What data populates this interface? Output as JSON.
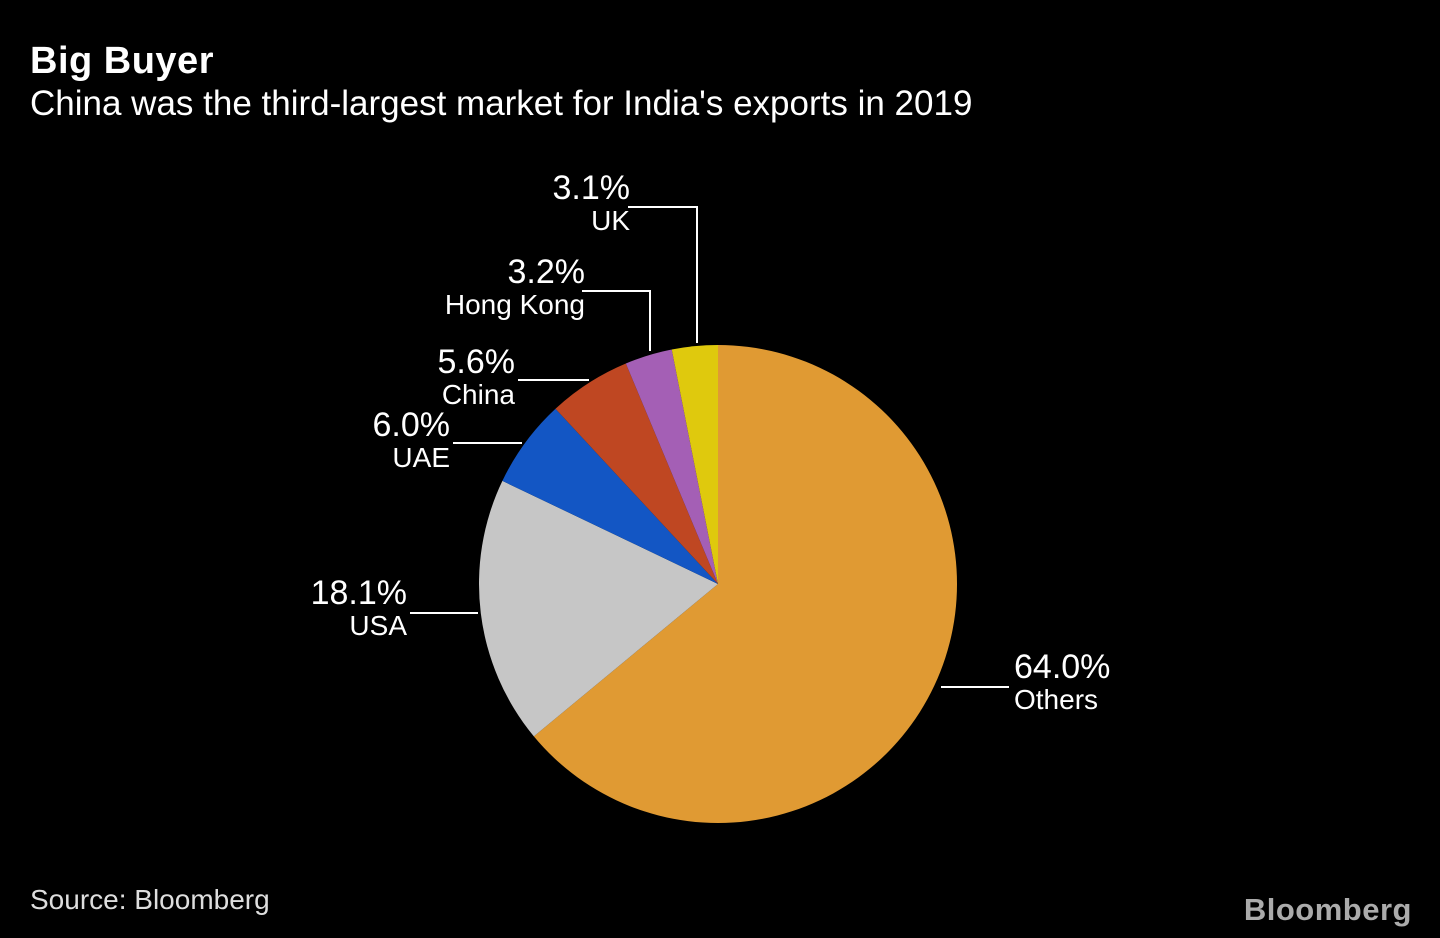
{
  "header": {
    "title": "Big Buyer",
    "subtitle": "China was the third-largest market for India's exports in 2019"
  },
  "chart_data": {
    "type": "pie",
    "title": "Big Buyer",
    "subtitle": "China was the third-largest market for India's exports in 2019",
    "unit": "%",
    "direction": "clockwise",
    "start_angle_deg": 0,
    "legend": "none",
    "label_style": "callout",
    "slices": [
      {
        "name": "Others",
        "value": 64.0,
        "label": "64.0%",
        "color": "#E09A33"
      },
      {
        "name": "USA",
        "value": 18.1,
        "label": "18.1%",
        "color": "#C6C6C6"
      },
      {
        "name": "UAE",
        "value": 6.0,
        "label": "6.0%",
        "color": "#1356C4"
      },
      {
        "name": "China",
        "value": 5.6,
        "label": "5.6%",
        "color": "#BF4722"
      },
      {
        "name": "Hong Kong",
        "value": 3.2,
        "label": "3.2%",
        "color": "#A45FB5"
      },
      {
        "name": "UK",
        "value": 3.1,
        "label": "3.1%",
        "color": "#DFC90D"
      }
    ]
  },
  "colors": {
    "background": "#000000",
    "text": "#FFFFFF",
    "leader_line": "#FFFFFF",
    "source_text": "#DEDEDE",
    "brand_text": "#ABABAB"
  },
  "footer": {
    "source": "Source: Bloomberg",
    "brand": "Bloomberg"
  }
}
